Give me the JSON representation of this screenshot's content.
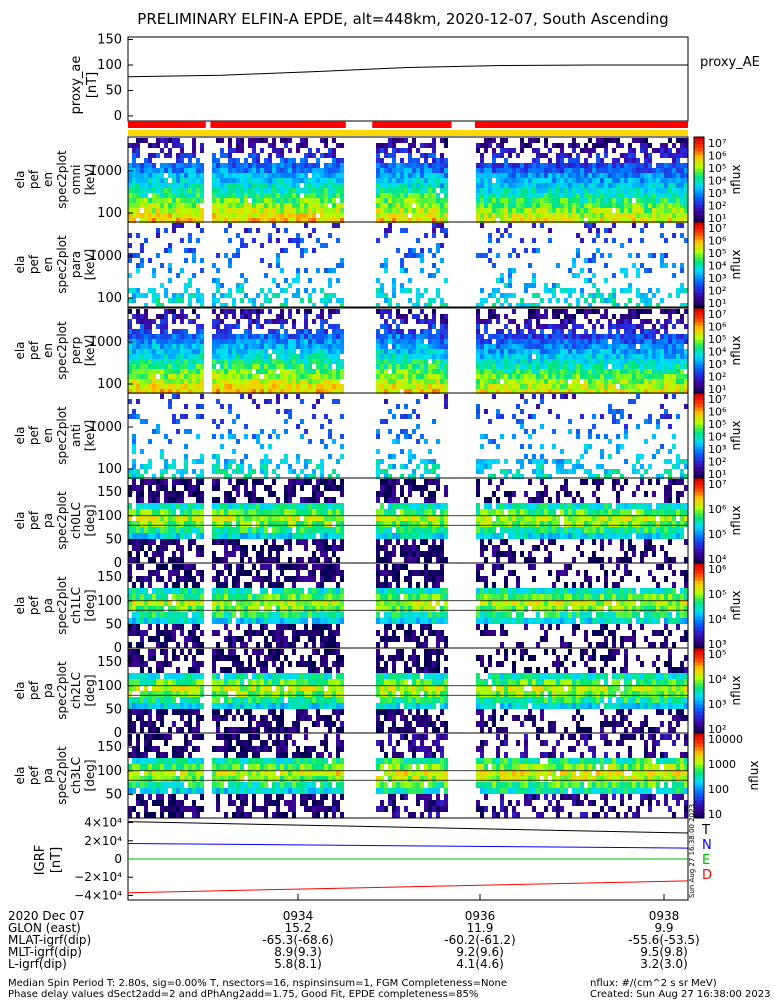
{
  "title": "PRELIMINARY ELFIN-A EPDE, alt=448km, 2020-12-07, South Ascending",
  "colors": {
    "proxy_line": "#000000",
    "bar_red": "#ff0000",
    "bar_yellow": "#ffd700",
    "igrf_T": "#000000",
    "igrf_N": "#0000ff",
    "igrf_E": "#00bb00",
    "igrf_D": "#ff0000"
  },
  "panels": {
    "proxy": {
      "ylabel": "proxy_ae\n[nT]",
      "ticks": [
        "150",
        "100",
        "50",
        "0"
      ],
      "legend": "proxy_AE"
    },
    "spec": [
      {
        "ylabel": "ela\npef\nen\nspec2plot\nomni\n[keV]",
        "ticks": [
          "1000",
          "100"
        ],
        "cbar_ticks": [
          "10⁷",
          "10⁶",
          "10⁵",
          "10⁴",
          "10³",
          "10²",
          "10¹"
        ],
        "cbar_label": "nflux"
      },
      {
        "ylabel": "ela\npef\nen\nspec2plot\npara\n[keV]",
        "ticks": [
          "1000",
          "100"
        ],
        "cbar_ticks": [
          "10⁷",
          "10⁶",
          "10⁵",
          "10⁴",
          "10³",
          "10²",
          "10¹"
        ],
        "cbar_label": "nflux"
      },
      {
        "ylabel": "ela\npef\nen\nspec2plot\nperp\n[keV]",
        "ticks": [
          "1000",
          "100"
        ],
        "cbar_ticks": [
          "10⁷",
          "10⁶",
          "10⁵",
          "10⁴",
          "10³",
          "10²",
          "10¹"
        ],
        "cbar_label": "nflux"
      },
      {
        "ylabel": "ela\npef\nen\nspec2plot\nanti\n[keV]",
        "ticks": [
          "1000",
          "100"
        ],
        "cbar_ticks": [
          "10⁷",
          "10⁶",
          "10⁵",
          "10⁴",
          "10³",
          "10²",
          "10¹"
        ],
        "cbar_label": "nflux"
      },
      {
        "ylabel": "ela\npef\npa\nspec2plot\nch0LC\n[deg]",
        "ticks": [
          "150",
          "100",
          "50",
          "0"
        ],
        "cbar_ticks": [
          "10⁷",
          "10⁶",
          "10⁵",
          "10⁴"
        ],
        "cbar_label": "nflux"
      },
      {
        "ylabel": "ela\npef\npa\nspec2plot\nch1LC\n[deg]",
        "ticks": [
          "150",
          "100",
          "50",
          "0"
        ],
        "cbar_ticks": [
          "10⁶",
          "10⁵",
          "10⁴",
          "10³"
        ],
        "cbar_label": "nflux"
      },
      {
        "ylabel": "ela\npef\npa\nspec2plot\nch2LC\n[deg]",
        "ticks": [
          "150",
          "100",
          "50",
          "0"
        ],
        "cbar_ticks": [
          "10⁵",
          "10⁴",
          "10³",
          "10²"
        ],
        "cbar_label": "nflux"
      },
      {
        "ylabel": "ela\npef\npa\nspec2plot\nch3LC\n[deg]",
        "ticks": [
          "150",
          "100",
          "50"
        ],
        "cbar_ticks": [
          "10000",
          "1000",
          "100",
          "10"
        ],
        "cbar_label": "nflux"
      }
    ],
    "igrf": {
      "ylabel": "IGRF\n[nT]",
      "ticks": [
        "4×10⁴",
        "2×10⁴",
        "0",
        "−2×10⁴",
        "−4×10⁴"
      ],
      "legend": [
        {
          "label": "T",
          "color": "#000000"
        },
        {
          "label": "N",
          "color": "#0000ff"
        },
        {
          "label": "E",
          "color": "#00bb00"
        },
        {
          "label": "D",
          "color": "#ff0000"
        }
      ],
      "side_stamp": "Sun Aug 27 16:38:00 2023"
    }
  },
  "x_axis": {
    "row_labels": [
      "2020 Dec 07",
      "GLON (east)",
      "MLAT-igrf(dip)",
      "MLT-igrf(dip)",
      "L-igrf(dip)"
    ],
    "columns": [
      {
        "time": "0934",
        "glon": "15.2",
        "mlat": "-65.3(-68.6)",
        "mlt": "8.9(9.3)",
        "l": "5.8(8.1)"
      },
      {
        "time": "0936",
        "glon": "11.9",
        "mlat": "-60.2(-61.2)",
        "mlt": "9.2(9.6)",
        "l": "4.1(4.6)"
      },
      {
        "time": "0938",
        "glon": "9.9",
        "mlat": "-55.6(-53.5)",
        "mlt": "9.5(9.8)",
        "l": "3.2(3.0)"
      }
    ]
  },
  "footer": {
    "line1": "Median Spin Period T: 2.80s, sig=0.00% T, nsectors=16, nspinsinsum=1, FGM Completeness=None",
    "line2": "Phase delay values dSect2add=2 and dPhAng2add=1.75, Good Fit, EPDE completeness=85%",
    "right1": "nflux: #/(cm^2 s sr MeV)",
    "right2": "Created: Sun Aug 27 16:38:00 2023"
  },
  "chart_data": {
    "type": "heatmap",
    "time_range": [
      "09:32:40",
      "09:38:40"
    ],
    "data_gaps": [
      [
        "09:33:30",
        "09:33:33"
      ],
      [
        "09:35:00",
        "09:35:17"
      ],
      [
        "09:36:08",
        "09:36:23"
      ]
    ],
    "proxy_ae": {
      "x": [
        "09:32:40",
        "09:33:40",
        "09:34:40",
        "09:35:40",
        "09:36:40",
        "09:37:40",
        "09:38:40"
      ],
      "y": [
        77,
        80,
        87,
        95,
        99,
        100,
        100
      ],
      "ylim": [
        -10,
        155
      ]
    },
    "igrf": {
      "x": [
        "09:32:40",
        "09:38:40"
      ],
      "T": [
        41000,
        28500
      ],
      "N": [
        17000,
        12000
      ],
      "E": [
        0,
        0
      ],
      "D": [
        -37000,
        -24000
      ],
      "ylim": [
        -45000,
        45000
      ]
    }
  }
}
